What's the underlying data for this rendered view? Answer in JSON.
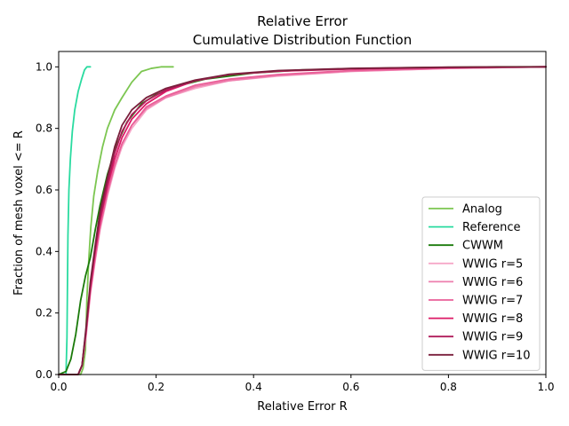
{
  "chart_data": {
    "type": "line",
    "title": "Relative Error",
    "subtitle": "Cumulative Distribution Function",
    "xlabel": "Relative Error R",
    "ylabel": "Fraction of mesh voxel <= R",
    "xlim": [
      0.0,
      1.0
    ],
    "ylim": [
      0.0,
      1.05
    ],
    "xticks": [
      "0.0",
      "0.2",
      "0.4",
      "0.6",
      "0.8",
      "1.0"
    ],
    "yticks": [
      "0.0",
      "0.2",
      "0.4",
      "0.6",
      "0.8",
      "1.0"
    ],
    "grid": false,
    "legend_position": "lower-right",
    "series": [
      {
        "name": "Analog",
        "color": "#7cc651",
        "points": [
          [
            0.0,
            0.0
          ],
          [
            0.045,
            0.0
          ],
          [
            0.05,
            0.02
          ],
          [
            0.055,
            0.08
          ],
          [
            0.058,
            0.25
          ],
          [
            0.062,
            0.38
          ],
          [
            0.066,
            0.48
          ],
          [
            0.072,
            0.58
          ],
          [
            0.08,
            0.66
          ],
          [
            0.09,
            0.74
          ],
          [
            0.1,
            0.8
          ],
          [
            0.115,
            0.86
          ],
          [
            0.13,
            0.9
          ],
          [
            0.15,
            0.95
          ],
          [
            0.17,
            0.985
          ],
          [
            0.19,
            0.995
          ],
          [
            0.21,
            1.0
          ],
          [
            0.235,
            1.0
          ]
        ]
      },
      {
        "name": "Reference",
        "color": "#2adba0",
        "points": [
          [
            0.0,
            0.0
          ],
          [
            0.015,
            0.0
          ],
          [
            0.017,
            0.12
          ],
          [
            0.019,
            0.45
          ],
          [
            0.021,
            0.6
          ],
          [
            0.024,
            0.7
          ],
          [
            0.028,
            0.79
          ],
          [
            0.033,
            0.86
          ],
          [
            0.04,
            0.92
          ],
          [
            0.047,
            0.96
          ],
          [
            0.053,
            0.99
          ],
          [
            0.058,
            1.0
          ],
          [
            0.065,
            1.0
          ]
        ]
      },
      {
        "name": "CWWM",
        "color": "#1a7a0a",
        "points": [
          [
            0.0,
            0.0
          ],
          [
            0.015,
            0.01
          ],
          [
            0.025,
            0.05
          ],
          [
            0.035,
            0.13
          ],
          [
            0.045,
            0.24
          ],
          [
            0.055,
            0.32
          ],
          [
            0.065,
            0.38
          ],
          [
            0.075,
            0.47
          ],
          [
            0.085,
            0.55
          ],
          [
            0.1,
            0.65
          ],
          [
            0.12,
            0.75
          ],
          [
            0.14,
            0.82
          ],
          [
            0.17,
            0.88
          ],
          [
            0.2,
            0.91
          ],
          [
            0.25,
            0.94
          ],
          [
            0.3,
            0.96
          ],
          [
            0.4,
            0.98
          ],
          [
            0.5,
            0.99
          ],
          [
            0.7,
            0.997
          ],
          [
            0.9,
            1.0
          ],
          [
            1.0,
            1.0
          ]
        ]
      },
      {
        "name": "WWIG r=5",
        "color": "#f6a8c8",
        "points": [
          [
            0.0,
            0.0
          ],
          [
            0.04,
            0.0
          ],
          [
            0.048,
            0.03
          ],
          [
            0.056,
            0.12
          ],
          [
            0.065,
            0.26
          ],
          [
            0.075,
            0.37
          ],
          [
            0.085,
            0.47
          ],
          [
            0.1,
            0.58
          ],
          [
            0.115,
            0.67
          ],
          [
            0.13,
            0.74
          ],
          [
            0.15,
            0.8
          ],
          [
            0.18,
            0.86
          ],
          [
            0.22,
            0.9
          ],
          [
            0.28,
            0.93
          ],
          [
            0.35,
            0.955
          ],
          [
            0.45,
            0.97
          ],
          [
            0.6,
            0.985
          ],
          [
            0.8,
            0.995
          ],
          [
            1.0,
            1.0
          ]
        ]
      },
      {
        "name": "WWIG r=6",
        "color": "#ee7fae",
        "points": [
          [
            0.0,
            0.0
          ],
          [
            0.04,
            0.0
          ],
          [
            0.048,
            0.03
          ],
          [
            0.056,
            0.13
          ],
          [
            0.065,
            0.27
          ],
          [
            0.075,
            0.38
          ],
          [
            0.085,
            0.48
          ],
          [
            0.1,
            0.59
          ],
          [
            0.115,
            0.68
          ],
          [
            0.13,
            0.75
          ],
          [
            0.15,
            0.81
          ],
          [
            0.18,
            0.865
          ],
          [
            0.22,
            0.9
          ],
          [
            0.28,
            0.935
          ],
          [
            0.35,
            0.955
          ],
          [
            0.45,
            0.972
          ],
          [
            0.6,
            0.986
          ],
          [
            0.8,
            0.995
          ],
          [
            1.0,
            1.0
          ]
        ]
      },
      {
        "name": "WWIG r=7",
        "color": "#ea5f98",
        "points": [
          [
            0.0,
            0.0
          ],
          [
            0.04,
            0.0
          ],
          [
            0.048,
            0.03
          ],
          [
            0.056,
            0.13
          ],
          [
            0.065,
            0.27
          ],
          [
            0.075,
            0.38
          ],
          [
            0.085,
            0.48
          ],
          [
            0.1,
            0.59
          ],
          [
            0.115,
            0.68
          ],
          [
            0.13,
            0.75
          ],
          [
            0.15,
            0.81
          ],
          [
            0.18,
            0.87
          ],
          [
            0.22,
            0.905
          ],
          [
            0.28,
            0.94
          ],
          [
            0.35,
            0.96
          ],
          [
            0.45,
            0.975
          ],
          [
            0.6,
            0.988
          ],
          [
            0.8,
            0.996
          ],
          [
            1.0,
            1.0
          ]
        ]
      },
      {
        "name": "WWIG r=8",
        "color": "#dc1a66",
        "points": [
          [
            0.0,
            0.0
          ],
          [
            0.04,
            0.0
          ],
          [
            0.048,
            0.03
          ],
          [
            0.056,
            0.14
          ],
          [
            0.065,
            0.28
          ],
          [
            0.075,
            0.4
          ],
          [
            0.085,
            0.5
          ],
          [
            0.1,
            0.61
          ],
          [
            0.115,
            0.7
          ],
          [
            0.13,
            0.77
          ],
          [
            0.15,
            0.83
          ],
          [
            0.18,
            0.88
          ],
          [
            0.22,
            0.92
          ],
          [
            0.28,
            0.955
          ],
          [
            0.35,
            0.975
          ],
          [
            0.45,
            0.986
          ],
          [
            0.6,
            0.993
          ],
          [
            0.8,
            0.998
          ],
          [
            1.0,
            1.0
          ]
        ]
      },
      {
        "name": "WWIG r=9",
        "color": "#b01c5a",
        "points": [
          [
            0.0,
            0.0
          ],
          [
            0.04,
            0.0
          ],
          [
            0.048,
            0.03
          ],
          [
            0.056,
            0.14
          ],
          [
            0.065,
            0.29
          ],
          [
            0.075,
            0.41
          ],
          [
            0.085,
            0.51
          ],
          [
            0.1,
            0.62
          ],
          [
            0.115,
            0.72
          ],
          [
            0.13,
            0.79
          ],
          [
            0.15,
            0.845
          ],
          [
            0.18,
            0.89
          ],
          [
            0.22,
            0.925
          ],
          [
            0.28,
            0.955
          ],
          [
            0.35,
            0.975
          ],
          [
            0.45,
            0.987
          ],
          [
            0.6,
            0.994
          ],
          [
            0.8,
            0.998
          ],
          [
            1.0,
            1.0
          ]
        ]
      },
      {
        "name": "WWIG r=10",
        "color": "#7a1f3c",
        "points": [
          [
            0.0,
            0.0
          ],
          [
            0.04,
            0.0
          ],
          [
            0.048,
            0.03
          ],
          [
            0.056,
            0.15
          ],
          [
            0.065,
            0.3
          ],
          [
            0.075,
            0.42
          ],
          [
            0.085,
            0.53
          ],
          [
            0.1,
            0.64
          ],
          [
            0.115,
            0.74
          ],
          [
            0.13,
            0.81
          ],
          [
            0.15,
            0.86
          ],
          [
            0.18,
            0.9
          ],
          [
            0.22,
            0.93
          ],
          [
            0.28,
            0.957
          ],
          [
            0.35,
            0.976
          ],
          [
            0.45,
            0.988
          ],
          [
            0.6,
            0.995
          ],
          [
            0.8,
            0.999
          ],
          [
            1.0,
            1.0
          ]
        ]
      }
    ]
  }
}
